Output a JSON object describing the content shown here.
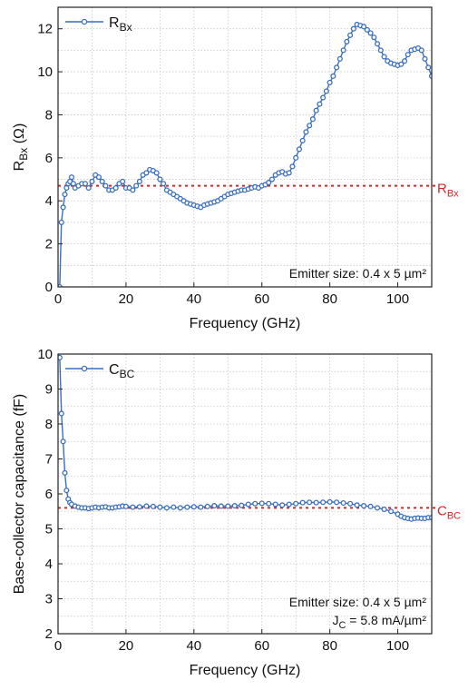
{
  "chart_data": [
    {
      "type": "scatter",
      "xlabel": "Frequency (GHz)",
      "ylabel": {
        "base": "R",
        "sub": "Bx",
        "rest": " (Ω)"
      },
      "xlim": [
        0,
        110
      ],
      "ylim": [
        0,
        13
      ],
      "xticks": [
        0,
        20,
        40,
        60,
        80,
        100
      ],
      "yticks": [
        0,
        2,
        4,
        6,
        8,
        10,
        12
      ],
      "grid": true,
      "legend": {
        "position": "top-left",
        "base": "R",
        "sub": "Bx"
      },
      "annotations": [
        {
          "text": "Emitter size: 0.4 x 5 µm²",
          "position": "bottom-right"
        }
      ],
      "reference_line": {
        "y": 4.7,
        "label_base": "R",
        "label_sub": "Bx",
        "color": "#d62728"
      },
      "series": [
        {
          "color": "#3a6fbf",
          "x": [
            0.5,
            1,
            1.5,
            2,
            2.5,
            3,
            3.5,
            4,
            4.5,
            5,
            6,
            7,
            8,
            9,
            10,
            11,
            12,
            13,
            14,
            15,
            16,
            17,
            18,
            19,
            20,
            21,
            22,
            23,
            24,
            25,
            26,
            27,
            28,
            29,
            30,
            31,
            32,
            33,
            34,
            35,
            36,
            37,
            38,
            39,
            40,
            41,
            42,
            43,
            44,
            45,
            46,
            47,
            48,
            49,
            50,
            51,
            52,
            53,
            54,
            55,
            56,
            57,
            58,
            59,
            60,
            61,
            62,
            63,
            64,
            65,
            66,
            67,
            68,
            69,
            70,
            71,
            72,
            73,
            74,
            75,
            76,
            77,
            78,
            79,
            80,
            81,
            82,
            83,
            84,
            85,
            86,
            87,
            88,
            89,
            90,
            91,
            92,
            93,
            94,
            95,
            96,
            97,
            98,
            99,
            100,
            101,
            102,
            103,
            104,
            105,
            106,
            107,
            108,
            109,
            110
          ],
          "y": [
            0.0,
            3.0,
            3.7,
            4.3,
            4.6,
            4.8,
            4.9,
            5.1,
            4.8,
            4.6,
            4.7,
            4.8,
            4.8,
            4.6,
            4.9,
            5.2,
            5.1,
            4.9,
            4.7,
            4.5,
            4.5,
            4.6,
            4.8,
            4.9,
            4.6,
            4.6,
            4.5,
            4.7,
            4.9,
            5.2,
            5.3,
            5.45,
            5.4,
            5.3,
            5.0,
            4.8,
            4.5,
            4.4,
            4.3,
            4.2,
            4.1,
            4.0,
            3.9,
            3.85,
            3.8,
            3.75,
            3.7,
            3.8,
            3.85,
            3.9,
            3.95,
            4.0,
            4.1,
            4.2,
            4.3,
            4.35,
            4.4,
            4.45,
            4.5,
            4.5,
            4.55,
            4.6,
            4.65,
            4.6,
            4.7,
            4.75,
            4.85,
            5.0,
            5.2,
            5.3,
            5.35,
            5.25,
            5.3,
            5.6,
            6.0,
            6.4,
            6.8,
            7.2,
            7.5,
            7.8,
            8.2,
            8.5,
            8.8,
            9.1,
            9.5,
            9.8,
            10.2,
            10.6,
            11.0,
            11.4,
            11.7,
            12.0,
            12.2,
            12.15,
            12.1,
            11.95,
            11.8,
            11.6,
            11.3,
            11.0,
            10.7,
            10.5,
            10.4,
            10.35,
            10.3,
            10.35,
            10.5,
            10.8,
            11.0,
            11.05,
            11.1,
            11.0,
            10.6,
            10.2,
            9.8
          ]
        }
      ]
    },
    {
      "type": "scatter",
      "xlabel": "Frequency (GHz)",
      "ylabel": {
        "base": "Base-collector capacitance (fF)",
        "sub": "",
        "rest": ""
      },
      "xlim": [
        0,
        110
      ],
      "ylim": [
        2,
        10
      ],
      "xticks": [
        0,
        20,
        40,
        60,
        80,
        100
      ],
      "yticks": [
        2,
        3,
        4,
        5,
        6,
        7,
        8,
        9,
        10
      ],
      "grid": true,
      "legend": {
        "position": "top-left",
        "base": "C",
        "sub": "BC"
      },
      "annotations": [
        {
          "text": "Emitter size: 0.4 x 5 µm²",
          "position": "bottom-right"
        },
        {
          "base": "J",
          "sub": "C",
          "rest": " = 5.8 mA/µm²",
          "position": "bottom-right"
        }
      ],
      "reference_line": {
        "y": 5.6,
        "label_base": "C",
        "label_sub": "BC",
        "color": "#d62728"
      },
      "series": [
        {
          "color": "#3a6fbf",
          "x": [
            0.5,
            1,
            1.5,
            2,
            2.5,
            3,
            3.5,
            4,
            5,
            6,
            7,
            8,
            9,
            10,
            11,
            12,
            13,
            14,
            15,
            16,
            17,
            18,
            19,
            20,
            22,
            24,
            26,
            28,
            30,
            32,
            34,
            36,
            38,
            40,
            42,
            44,
            46,
            48,
            50,
            52,
            54,
            56,
            58,
            60,
            62,
            64,
            66,
            68,
            70,
            72,
            74,
            76,
            78,
            80,
            82,
            84,
            86,
            88,
            90,
            92,
            94,
            96,
            98,
            100,
            101,
            102,
            103,
            104,
            105,
            106,
            107,
            108,
            109,
            110
          ],
          "y": [
            9.9,
            8.3,
            7.5,
            6.6,
            6.1,
            5.85,
            5.75,
            5.7,
            5.65,
            5.62,
            5.6,
            5.6,
            5.58,
            5.6,
            5.62,
            5.6,
            5.62,
            5.63,
            5.6,
            5.6,
            5.62,
            5.63,
            5.65,
            5.64,
            5.62,
            5.63,
            5.65,
            5.64,
            5.62,
            5.6,
            5.62,
            5.6,
            5.62,
            5.63,
            5.62,
            5.64,
            5.66,
            5.65,
            5.65,
            5.66,
            5.67,
            5.7,
            5.72,
            5.73,
            5.72,
            5.7,
            5.68,
            5.7,
            5.72,
            5.75,
            5.76,
            5.75,
            5.76,
            5.77,
            5.76,
            5.74,
            5.72,
            5.68,
            5.66,
            5.64,
            5.6,
            5.56,
            5.5,
            5.42,
            5.36,
            5.32,
            5.3,
            5.28,
            5.3,
            5.31,
            5.3,
            5.3,
            5.32,
            5.32
          ]
        }
      ]
    }
  ]
}
